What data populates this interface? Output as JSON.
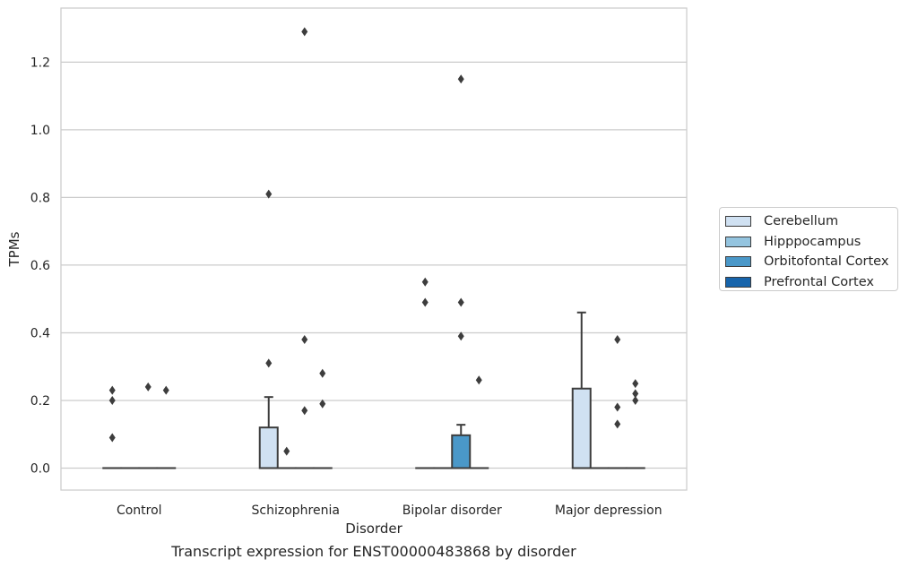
{
  "chart_data": {
    "type": "box",
    "caption": "Transcript expression for ENST00000483868 by disorder",
    "xlabel": "Disorder",
    "ylabel": "TPMs",
    "ylim": [
      -0.065,
      1.36
    ],
    "yticks": [
      0.0,
      0.2,
      0.4,
      0.6,
      0.8,
      1.0,
      1.2
    ],
    "ytick_labels": [
      "0.0",
      "0.2",
      "0.4",
      "0.6",
      "0.8",
      "1.0",
      "1.2"
    ],
    "grid": true,
    "legend_position": "right",
    "categories": [
      "Control",
      "Schizophrenia",
      "Bipolar disorder",
      "Major depression"
    ],
    "series": [
      {
        "name": "Cerebellum",
        "color": "#d0e1f2",
        "boxes": [
          {
            "q1": 0.0,
            "median": 0.0,
            "q3": 0.0,
            "whisker_low": 0.0,
            "whisker_high": 0.0,
            "outliers": [
              0.23,
              0.2,
              0.09
            ]
          },
          {
            "q1": 0.0,
            "median": 0.0,
            "q3": 0.12,
            "whisker_low": 0.0,
            "whisker_high": 0.21,
            "outliers": [
              0.81,
              0.31
            ]
          },
          {
            "q1": 0.0,
            "median": 0.0,
            "q3": 0.0,
            "whisker_low": 0.0,
            "whisker_high": 0.0,
            "outliers": [
              0.55,
              0.49
            ]
          },
          {
            "q1": 0.0,
            "median": 0.0,
            "q3": 0.235,
            "whisker_low": 0.0,
            "whisker_high": 0.46,
            "outliers": []
          }
        ]
      },
      {
        "name": "Hipppocampus",
        "color": "#94c4df",
        "boxes": [
          {
            "q1": 0.0,
            "median": 0.0,
            "q3": 0.0,
            "whisker_low": 0.0,
            "whisker_high": 0.0,
            "outliers": []
          },
          {
            "q1": 0.0,
            "median": 0.0,
            "q3": 0.0,
            "whisker_low": 0.0,
            "whisker_high": 0.0,
            "outliers": [
              0.05
            ]
          },
          {
            "q1": 0.0,
            "median": 0.0,
            "q3": 0.0,
            "whisker_low": 0.0,
            "whisker_high": 0.0,
            "outliers": []
          },
          {
            "q1": 0.0,
            "median": 0.0,
            "q3": 0.0,
            "whisker_low": 0.0,
            "whisker_high": 0.0,
            "outliers": []
          }
        ]
      },
      {
        "name": "Orbitofontal Cortex",
        "color": "#4a98c9",
        "boxes": [
          {
            "q1": 0.0,
            "median": 0.0,
            "q3": 0.0,
            "whisker_low": 0.0,
            "whisker_high": 0.0,
            "outliers": [
              0.24
            ]
          },
          {
            "q1": 0.0,
            "median": 0.0,
            "q3": 0.0,
            "whisker_low": 0.0,
            "whisker_high": 0.0,
            "outliers": [
              1.29,
              0.38,
              0.17
            ]
          },
          {
            "q1": 0.0,
            "median": 0.0,
            "q3": 0.097,
            "whisker_low": 0.0,
            "whisker_high": 0.128,
            "outliers": [
              1.15,
              0.49,
              0.39
            ]
          },
          {
            "q1": 0.0,
            "median": 0.0,
            "q3": 0.0,
            "whisker_low": 0.0,
            "whisker_high": 0.0,
            "outliers": [
              0.38,
              0.18,
              0.13
            ]
          }
        ]
      },
      {
        "name": "Prefrontal Cortex",
        "color": "#1764ab",
        "boxes": [
          {
            "q1": 0.0,
            "median": 0.0,
            "q3": 0.0,
            "whisker_low": 0.0,
            "whisker_high": 0.0,
            "outliers": [
              0.23
            ]
          },
          {
            "q1": 0.0,
            "median": 0.0,
            "q3": 0.0,
            "whisker_low": 0.0,
            "whisker_high": 0.0,
            "outliers": [
              0.28,
              0.19
            ]
          },
          {
            "q1": 0.0,
            "median": 0.0,
            "q3": 0.0,
            "whisker_low": 0.0,
            "whisker_high": 0.0,
            "outliers": [
              0.26
            ]
          },
          {
            "q1": 0.0,
            "median": 0.0,
            "q3": 0.0,
            "whisker_low": 0.0,
            "whisker_high": 0.0,
            "outliers": [
              0.25,
              0.22,
              0.2
            ]
          }
        ]
      }
    ]
  }
}
